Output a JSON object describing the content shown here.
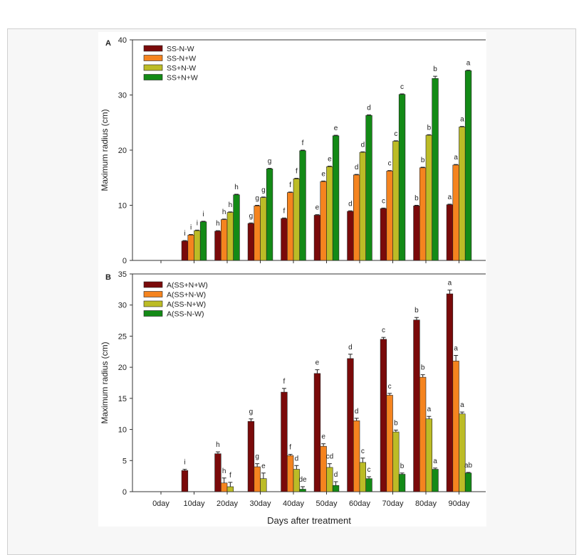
{
  "chart_data": [
    {
      "type": "bar",
      "panel_label": "A",
      "ylabel": "Maximum radius (cm)",
      "xlabel": "",
      "ylim": [
        0,
        40
      ],
      "yticks": [
        0,
        10,
        20,
        30,
        40
      ],
      "categories": [
        "0day",
        "10day",
        "20day",
        "30day",
        "40day",
        "50day",
        "60day",
        "70day",
        "80day",
        "90day"
      ],
      "show_category_labels": false,
      "legend_position": "top-left",
      "series": [
        {
          "name": "SS-N-W",
          "color": "#7a0a0a",
          "values": [
            0,
            3.5,
            5.3,
            6.7,
            7.6,
            8.2,
            8.9,
            9.4,
            9.9,
            10.1
          ],
          "errors": [
            0,
            0.1,
            0.1,
            0.1,
            0.1,
            0.1,
            0.1,
            0.1,
            0.1,
            0.1
          ],
          "letters": [
            "",
            "i",
            "h",
            "g",
            "f",
            "e",
            "d",
            "c",
            "b",
            "a"
          ]
        },
        {
          "name": "SS-N+W",
          "color": "#f5841f",
          "values": [
            0,
            4.6,
            7.4,
            9.9,
            12.3,
            14.3,
            15.5,
            16.2,
            16.8,
            17.3
          ],
          "errors": [
            0,
            0.1,
            0.1,
            0.1,
            0.1,
            0.1,
            0.1,
            0.1,
            0.1,
            0.1
          ],
          "letters": [
            "",
            "i",
            "h",
            "g",
            "f",
            "e",
            "d",
            "c",
            "b",
            "a"
          ]
        },
        {
          "name": "SS+N-W",
          "color": "#bcbc26",
          "values": [
            0,
            5.4,
            8.7,
            11.4,
            14.8,
            17.0,
            19.6,
            21.6,
            22.7,
            24.2
          ],
          "errors": [
            0,
            0.1,
            0.1,
            0.1,
            0.1,
            0.1,
            0.1,
            0.1,
            0.1,
            0.1
          ],
          "letters": [
            "",
            "i",
            "h",
            "g",
            "f",
            "e",
            "d",
            "c",
            "b",
            "a"
          ]
        },
        {
          "name": "SS+N+W",
          "color": "#138a16",
          "values": [
            0,
            7.0,
            11.9,
            16.6,
            19.9,
            22.6,
            26.3,
            30.1,
            33.0,
            34.4
          ],
          "errors": [
            0,
            0.1,
            0.1,
            0.1,
            0.1,
            0.1,
            0.1,
            0.1,
            0.4,
            0.1
          ],
          "letters": [
            "",
            "i",
            "h",
            "g",
            "f",
            "e",
            "d",
            "c",
            "b",
            "a"
          ]
        }
      ]
    },
    {
      "type": "bar",
      "panel_label": "B",
      "ylabel": "Maximum radius (cm)",
      "xlabel": "Days after treatment",
      "ylim": [
        0,
        35
      ],
      "yticks": [
        0,
        5,
        10,
        15,
        20,
        25,
        30,
        35
      ],
      "categories": [
        "0day",
        "10day",
        "20day",
        "30day",
        "40day",
        "50day",
        "60day",
        "70day",
        "80day",
        "90day"
      ],
      "show_category_labels": true,
      "legend_position": "top-left",
      "series": [
        {
          "name": "A(SS+N+W)",
          "color": "#7a0a0a",
          "values": [
            0,
            3.4,
            6.1,
            11.3,
            16.0,
            19.0,
            21.4,
            24.5,
            27.6,
            31.8
          ],
          "errors": [
            0,
            0.2,
            0.3,
            0.4,
            0.6,
            0.6,
            0.7,
            0.3,
            0.4,
            0.6
          ],
          "letters": [
            "",
            "i",
            "h",
            "g",
            "f",
            "e",
            "d",
            "c",
            "b",
            "a"
          ]
        },
        {
          "name": "A(SS+N-W)",
          "color": "#f5841f",
          "values": [
            0,
            0,
            1.4,
            4.0,
            5.8,
            7.3,
            11.4,
            15.5,
            18.4,
            21.0
          ],
          "errors": [
            0,
            0,
            0.8,
            0.5,
            0.2,
            0.4,
            0.4,
            0.3,
            0.4,
            0.9
          ],
          "letters": [
            "",
            "",
            "h",
            "g",
            "f",
            "e",
            "d",
            "c",
            "b",
            "a"
          ]
        },
        {
          "name": "A(SS-N+W)",
          "color": "#bcbc26",
          "values": [
            0,
            0,
            0.8,
            2.1,
            3.6,
            3.9,
            4.7,
            9.6,
            11.7,
            12.5
          ],
          "errors": [
            0,
            0,
            0.7,
            0.9,
            0.6,
            0.6,
            0.7,
            0.3,
            0.4,
            0.3
          ],
          "letters": [
            "",
            "",
            "f",
            "e",
            "d",
            "cd",
            "c",
            "b",
            "a",
            "a"
          ]
        },
        {
          "name": "A(SS-N-W)",
          "color": "#138a16",
          "values": [
            0,
            0,
            0,
            0,
            0.4,
            1.0,
            2.1,
            2.8,
            3.6,
            3.0
          ],
          "errors": [
            0,
            0,
            0,
            0,
            0.4,
            0.6,
            0.3,
            0.2,
            0.2,
            0.1
          ],
          "letters": [
            "",
            "",
            "",
            "",
            "de",
            "d",
            "c",
            "b",
            "a",
            "ab"
          ]
        }
      ]
    }
  ]
}
